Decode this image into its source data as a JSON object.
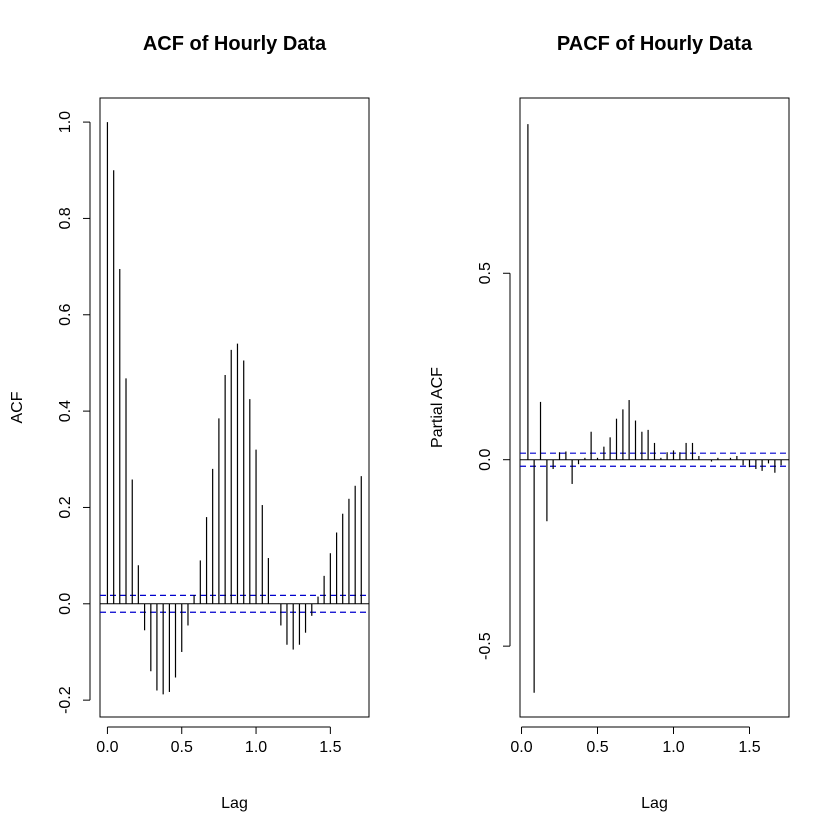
{
  "chart_data": [
    {
      "type": "bar",
      "title": "ACF of Hourly Data",
      "xlabel": "Lag",
      "ylabel": "ACF",
      "xlim": [
        -0.05,
        1.76
      ],
      "ylim": [
        -0.235,
        1.05
      ],
      "x_ticks": [
        0.0,
        0.5,
        1.0,
        1.5
      ],
      "x_tick_labels": [
        "0.0",
        "0.5",
        "1.0",
        "1.5"
      ],
      "y_ticks": [
        -0.2,
        0.0,
        0.2,
        0.4,
        0.6,
        0.8,
        1.0
      ],
      "y_tick_labels": [
        "-0.2",
        "0.0",
        "0.2",
        "0.4",
        "0.6",
        "0.8",
        "1.0"
      ],
      "confidence_band": 0.0175,
      "colors": {
        "bars": "#000000",
        "band": "#0000cd",
        "zero": "#000000"
      },
      "lags": [
        0.0,
        0.042,
        0.083,
        0.125,
        0.167,
        0.208,
        0.25,
        0.292,
        0.333,
        0.375,
        0.417,
        0.458,
        0.5,
        0.542,
        0.583,
        0.625,
        0.667,
        0.708,
        0.75,
        0.792,
        0.833,
        0.875,
        0.917,
        0.958,
        1.0,
        1.042,
        1.083,
        1.125,
        1.167,
        1.208,
        1.25,
        1.292,
        1.333,
        1.375,
        1.417,
        1.458,
        1.5,
        1.542,
        1.583,
        1.625,
        1.667,
        1.708
      ],
      "values": [
        1.0,
        0.9,
        0.695,
        0.468,
        0.258,
        0.08,
        -0.055,
        -0.14,
        -0.18,
        -0.188,
        -0.183,
        -0.153,
        -0.1,
        -0.045,
        0.018,
        0.09,
        0.18,
        0.28,
        0.385,
        0.475,
        0.527,
        0.54,
        0.505,
        0.425,
        0.32,
        0.205,
        0.095,
        0.0,
        -0.045,
        -0.085,
        -0.095,
        -0.085,
        -0.06,
        -0.025,
        0.015,
        0.058,
        0.105,
        0.148,
        0.187,
        0.218,
        0.245,
        0.265
      ]
    },
    {
      "type": "bar",
      "title": "PACF of Hourly Data",
      "xlabel": "Lag",
      "ylabel": "Partial ACF",
      "xlim": [
        -0.01,
        1.76
      ],
      "ylim": [
        -0.69,
        0.97
      ],
      "x_ticks": [
        0.0,
        0.5,
        1.0,
        1.5
      ],
      "x_tick_labels": [
        "0.0",
        "0.5",
        "1.0",
        "1.5"
      ],
      "y_ticks": [
        -0.5,
        0.0,
        0.5
      ],
      "y_tick_labels": [
        "-0.5",
        "0.0",
        "0.5"
      ],
      "confidence_band": 0.0175,
      "colors": {
        "bars": "#000000",
        "band": "#0000cd",
        "zero": "#000000"
      },
      "lags": [
        0.042,
        0.083,
        0.125,
        0.167,
        0.208,
        0.25,
        0.292,
        0.333,
        0.375,
        0.417,
        0.458,
        0.5,
        0.542,
        0.583,
        0.625,
        0.667,
        0.708,
        0.75,
        0.792,
        0.833,
        0.875,
        0.917,
        0.958,
        1.0,
        1.042,
        1.083,
        1.125,
        1.167,
        1.208,
        1.25,
        1.292,
        1.333,
        1.375,
        1.417,
        1.458,
        1.5,
        1.542,
        1.583,
        1.625,
        1.667,
        1.708
      ],
      "values": [
        0.9,
        -0.625,
        0.155,
        -0.165,
        -0.025,
        0.02,
        0.022,
        -0.065,
        -0.012,
        0.005,
        0.075,
        0.005,
        0.035,
        0.06,
        0.11,
        0.135,
        0.16,
        0.105,
        0.075,
        0.08,
        0.045,
        0.005,
        0.02,
        0.025,
        0.02,
        0.045,
        0.045,
        0.01,
        0.0,
        -0.005,
        0.005,
        0.0,
        0.005,
        0.01,
        -0.015,
        -0.02,
        -0.025,
        -0.03,
        -0.01,
        -0.035,
        -0.015
      ]
    }
  ]
}
